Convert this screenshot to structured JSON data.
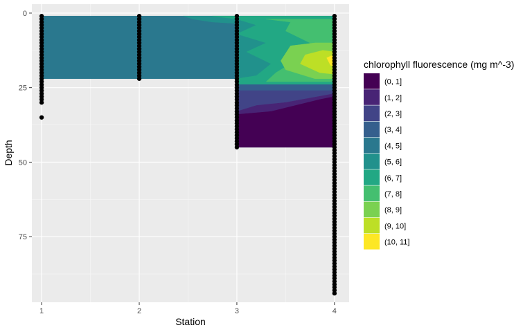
{
  "chart_data": {
    "type": "contour",
    "xlabel": "Station",
    "ylabel": "Depth",
    "x_ticks": [
      "1",
      "2",
      "3",
      "4"
    ],
    "y_ticks": [
      "0",
      "25",
      "50",
      "75"
    ],
    "x_range": [
      0.9,
      4.15
    ],
    "y_range": [
      -3,
      97
    ],
    "y_reversed": true,
    "grid": true,
    "legend": {
      "title": "chlorophyll fluorescence (mg m^-3)",
      "position": "right",
      "entries": [
        {
          "label": "(0, 1]",
          "color": "#440154"
        },
        {
          "label": "(1, 2]",
          "color": "#482475"
        },
        {
          "label": "(2, 3]",
          "color": "#414487"
        },
        {
          "label": "(3, 4]",
          "color": "#355F8D"
        },
        {
          "label": "(4, 5]",
          "color": "#2A788E"
        },
        {
          "label": "(5, 6]",
          "color": "#21918C"
        },
        {
          "label": "(6, 7]",
          "color": "#22A884"
        },
        {
          "label": "(7, 8]",
          "color": "#44BF70"
        },
        {
          "label": "(8, 9]",
          "color": "#7AD151"
        },
        {
          "label": "(9, 10]",
          "color": "#BDDF26"
        },
        {
          "label": "(10, 11]",
          "color": "#FDE725"
        }
      ]
    },
    "stations": [
      {
        "station": 1,
        "depth_min": 1,
        "depth_max": 30,
        "extra_depths": [
          35
        ]
      },
      {
        "station": 2,
        "depth_min": 1,
        "depth_max": 22,
        "extra_depths": []
      },
      {
        "station": 3,
        "depth_min": 1,
        "depth_max": 45,
        "extra_depths": []
      },
      {
        "station": 4,
        "depth_min": 1,
        "depth_max": 94,
        "extra_depths": []
      }
    ],
    "filled_regions": [
      {
        "range": "(4, 5]",
        "points": [
          [
            1,
            1
          ],
          [
            3,
            1
          ],
          [
            3,
            22
          ],
          [
            1,
            22
          ]
        ]
      },
      {
        "range": "(5, 6]",
        "points": [
          [
            2.45,
            1
          ],
          [
            4,
            1
          ],
          [
            4,
            26
          ],
          [
            3,
            26
          ],
          [
            3,
            3.5
          ],
          [
            2.75,
            3
          ],
          [
            2.55,
            2
          ]
        ]
      },
      {
        "range": "(6, 7]",
        "points": [
          [
            2.75,
            1
          ],
          [
            4,
            1
          ],
          [
            4,
            24
          ],
          [
            3,
            24
          ],
          [
            3,
            22
          ],
          [
            3.2,
            21
          ],
          [
            3.35,
            17
          ],
          [
            3.1,
            13
          ],
          [
            3.3,
            10
          ],
          [
            3.0,
            7
          ],
          [
            3.2,
            4
          ],
          [
            3.0,
            2
          ]
        ]
      },
      {
        "range": "(7, 8]",
        "points": [
          [
            3.3,
            2
          ],
          [
            4,
            2
          ],
          [
            4,
            23
          ],
          [
            3.3,
            23
          ],
          [
            3.4,
            20
          ],
          [
            3.55,
            17
          ],
          [
            3.65,
            13
          ],
          [
            3.75,
            10
          ],
          [
            3.5,
            6
          ],
          [
            3.55,
            3
          ]
        ]
      },
      {
        "range": "(8, 9]",
        "points": [
          [
            3.55,
            11
          ],
          [
            3.8,
            10
          ],
          [
            4,
            10
          ],
          [
            4,
            22
          ],
          [
            3.8,
            22
          ],
          [
            3.5,
            19
          ],
          [
            3.45,
            16
          ]
        ]
      },
      {
        "range": "(9, 10]",
        "points": [
          [
            3.7,
            14
          ],
          [
            3.88,
            12.5
          ],
          [
            4,
            13
          ],
          [
            4,
            20.5
          ],
          [
            3.85,
            20
          ],
          [
            3.65,
            17
          ]
        ]
      },
      {
        "range": "(10, 11]",
        "points": [
          [
            3.92,
            15
          ],
          [
            3.97,
            14.3
          ],
          [
            4,
            15
          ],
          [
            4,
            17.8
          ],
          [
            3.96,
            17.5
          ]
        ]
      },
      {
        "range": "(3, 4]",
        "points": [
          [
            3,
            24
          ],
          [
            4,
            24
          ],
          [
            4,
            26
          ],
          [
            3,
            26
          ]
        ]
      },
      {
        "range": "(2, 3]",
        "points": [
          [
            3,
            26
          ],
          [
            4,
            26
          ],
          [
            4,
            27
          ],
          [
            3.5,
            30
          ],
          [
            3.2,
            31
          ],
          [
            3,
            33
          ]
        ]
      },
      {
        "range": "(1, 2]",
        "points": [
          [
            3,
            33
          ],
          [
            3.2,
            31
          ],
          [
            3.5,
            30
          ],
          [
            4,
            27
          ],
          [
            4,
            45
          ],
          [
            3,
            45
          ]
        ]
      },
      {
        "range": "(0, 1]",
        "points": [
          [
            3,
            34
          ],
          [
            3.35,
            33
          ],
          [
            3.6,
            31
          ],
          [
            3.85,
            29
          ],
          [
            4,
            28
          ],
          [
            4,
            45
          ],
          [
            3,
            45
          ]
        ]
      }
    ]
  }
}
